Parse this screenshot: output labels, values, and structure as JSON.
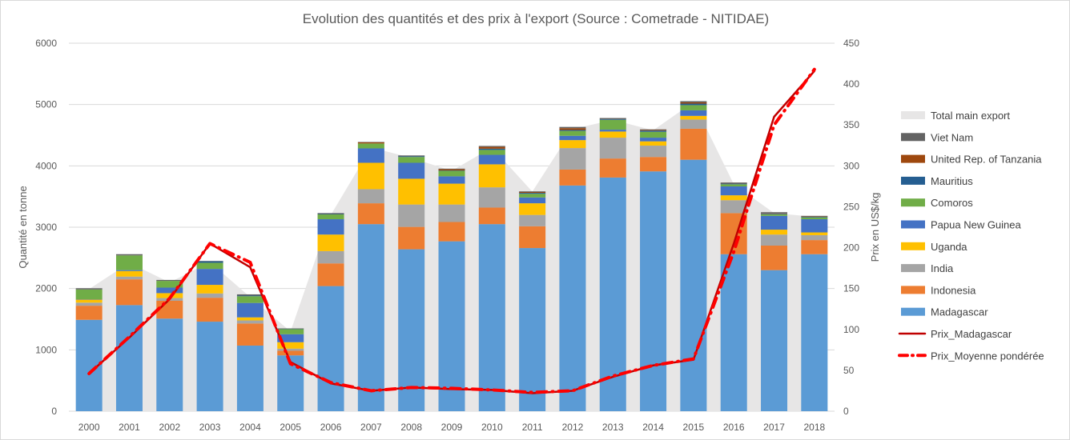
{
  "chart_data": {
    "type": "bar",
    "subtype": "stacked-bar-with-area-and-lines",
    "title": "Evolution des quantités et des prix à l'export (Source : Cometrade - NITIDAE)",
    "ylabel": "Quantité en tonne",
    "y2label": "Prix en US$/kg",
    "ylim": [
      0,
      6000
    ],
    "y2lim": [
      0,
      450
    ],
    "yticks": [
      0,
      1000,
      2000,
      3000,
      4000,
      5000,
      6000
    ],
    "y2ticks": [
      0,
      50,
      100,
      150,
      200,
      250,
      300,
      350,
      400,
      450
    ],
    "grid": true,
    "legend_position": "right",
    "categories": [
      "2000",
      "2001",
      "2002",
      "2003",
      "2004",
      "2005",
      "2006",
      "2007",
      "2008",
      "2009",
      "2010",
      "2011",
      "2012",
      "2013",
      "2014",
      "2015",
      "2016",
      "2017",
      "2018"
    ],
    "area": {
      "name": "Total main export",
      "color": "#E7E6E6",
      "values": [
        1990,
        2420,
        2100,
        2430,
        1860,
        1300,
        3200,
        4300,
        4130,
        3920,
        4300,
        3580,
        4600,
        4750,
        4580,
        5040,
        3700,
        3230,
        3170
      ]
    },
    "series": [
      {
        "name": "Madagascar",
        "color": "#5B9BD5",
        "values": [
          1490,
          1730,
          1510,
          1460,
          1070,
          910,
          2040,
          3050,
          2640,
          2770,
          3050,
          2660,
          3680,
          3810,
          3910,
          4100,
          2560,
          2300,
          2560
        ]
      },
      {
        "name": "Indonesia",
        "color": "#ED7D31",
        "values": [
          230,
          420,
          290,
          390,
          360,
          75,
          370,
          340,
          365,
          315,
          270,
          355,
          260,
          310,
          235,
          505,
          670,
          400,
          230
        ]
      },
      {
        "name": "India",
        "color": "#A5A5A5",
        "values": [
          50,
          45,
          45,
          70,
          50,
          35,
          200,
          230,
          365,
          285,
          330,
          185,
          350,
          340,
          185,
          150,
          210,
          180,
          80
        ]
      },
      {
        "name": "Uganda",
        "color": "#FFC000",
        "values": [
          50,
          90,
          80,
          140,
          50,
          105,
          270,
          430,
          420,
          340,
          375,
          190,
          130,
          100,
          70,
          60,
          80,
          80,
          45
        ]
      },
      {
        "name": "Papua New Guinea",
        "color": "#4472C4",
        "values": [
          5,
          15,
          90,
          260,
          235,
          130,
          250,
          235,
          260,
          120,
          155,
          95,
          70,
          30,
          60,
          90,
          145,
          225,
          215
        ]
      },
      {
        "name": "Comoros",
        "color": "#70AD47",
        "values": [
          160,
          240,
          110,
          100,
          110,
          85,
          80,
          80,
          95,
          90,
          80,
          60,
          80,
          160,
          95,
          85,
          35,
          25,
          30
        ]
      },
      {
        "name": "Mauritius",
        "color": "#255E91",
        "values": [
          0,
          0,
          0,
          25,
          10,
          5,
          5,
          0,
          10,
          5,
          20,
          15,
          15,
          10,
          20,
          25,
          15,
          10,
          10
        ]
      },
      {
        "name": "United Rep. of Tanzania",
        "color": "#9E480E",
        "values": [
          0,
          0,
          0,
          0,
          0,
          0,
          0,
          20,
          0,
          20,
          30,
          15,
          30,
          0,
          10,
          20,
          5,
          5,
          5
        ]
      },
      {
        "name": "Viet Nam",
        "color": "#636363",
        "values": [
          20,
          20,
          15,
          5,
          20,
          5,
          15,
          5,
          15,
          10,
          15,
          10,
          20,
          20,
          10,
          20,
          10,
          20,
          10
        ]
      }
    ],
    "lines": [
      {
        "name": "Prix_Madagascar",
        "color": "#C00000",
        "style": "solid",
        "axis": "right",
        "values": [
          46,
          90,
          137,
          205,
          176,
          60,
          34,
          25,
          29,
          27,
          26,
          22,
          25,
          42,
          56,
          63,
          205,
          360,
          416
        ]
      },
      {
        "name": "Prix_Moyenne pondérée",
        "color": "#FF0000",
        "style": "dash-dot",
        "axis": "right",
        "values": [
          46,
          91,
          138,
          205,
          182,
          58,
          35,
          25,
          29,
          28,
          26,
          23,
          25,
          43,
          56,
          64,
          195,
          350,
          418
        ]
      }
    ],
    "legend_order": [
      "Total main export",
      "Viet Nam",
      "United Rep. of Tanzania",
      "Mauritius",
      "Comoros",
      "Papua New Guinea",
      "Uganda",
      "India",
      "Indonesia",
      "Madagascar",
      "Prix_Madagascar",
      "Prix_Moyenne pondérée"
    ]
  }
}
